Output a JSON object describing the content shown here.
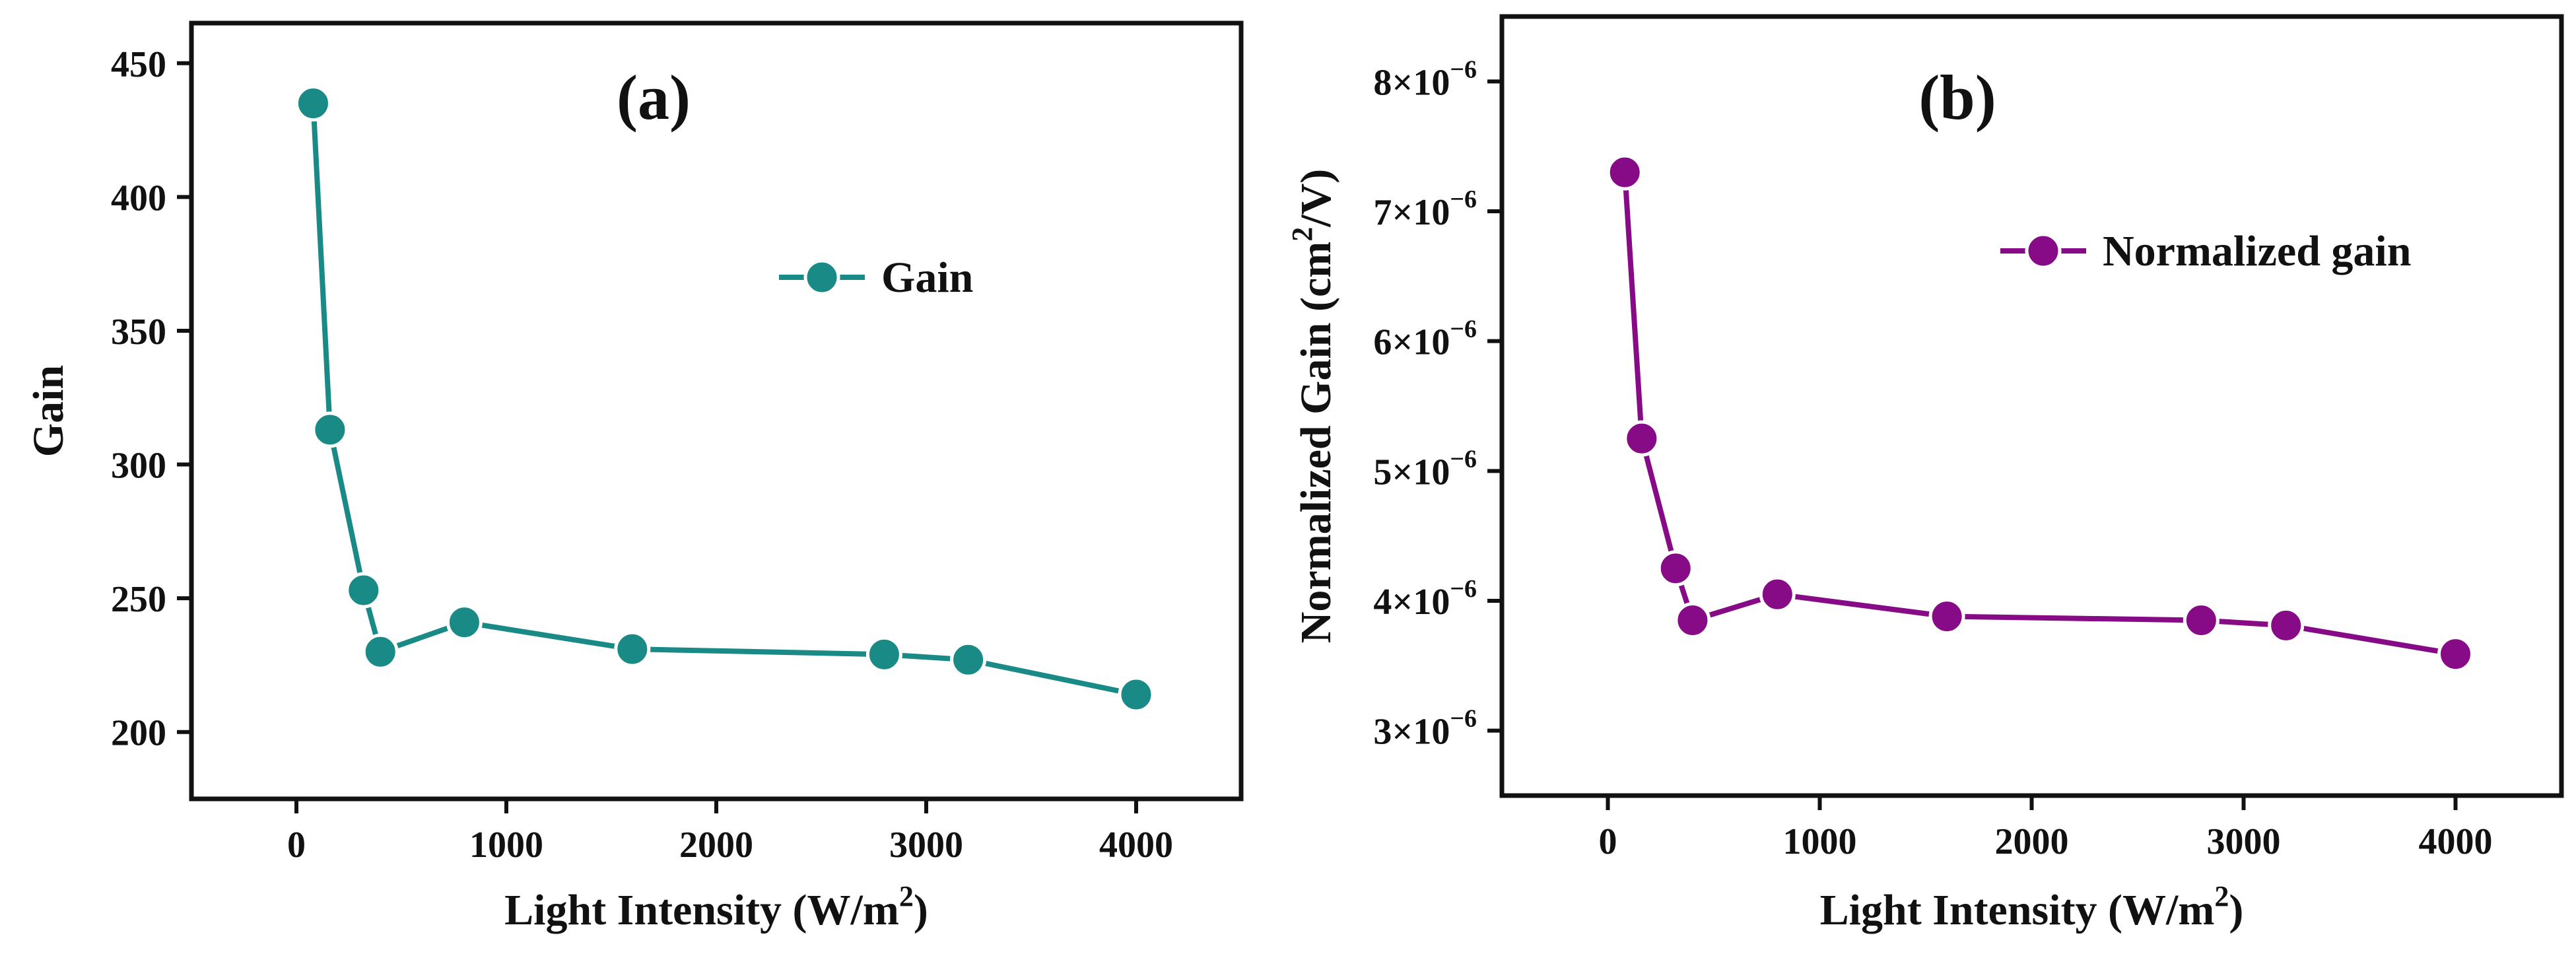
{
  "chart_data": [
    {
      "type": "line",
      "panel_label": "(a)",
      "xlabel": "Light Intensity (W/m",
      "xlabel_sup": "2",
      "xlabel_end": ")",
      "ylabel": "Gain",
      "xlim": [
        -500,
        4500
      ],
      "ylim": [
        175,
        465
      ],
      "xticks": [
        0,
        1000,
        2000,
        3000,
        4000
      ],
      "xtick_labels": [
        "0",
        "1000",
        "2000",
        "3000",
        "4000"
      ],
      "yticks": [
        200,
        250,
        300,
        350,
        400,
        450
      ],
      "ytick_labels": [
        "200",
        "250",
        "300",
        "350",
        "400",
        "450"
      ],
      "legend": "Gain",
      "legend_position": "top-right",
      "color": "#1a8a87",
      "series": [
        {
          "name": "Gain",
          "x": [
            80,
            160,
            320,
            400,
            800,
            1600,
            2800,
            3200,
            4000
          ],
          "y": [
            435,
            313,
            253,
            230,
            241,
            231,
            229,
            227,
            214
          ]
        }
      ]
    },
    {
      "type": "line",
      "panel_label": "(b)",
      "xlabel": "Light Intensity (W/m",
      "xlabel_sup": "2",
      "xlabel_end": ")",
      "ylabel": "Normalized Gain (cm",
      "ylabel_sup": "2",
      "ylabel_end": "/V)",
      "xlim": [
        -500,
        4500
      ],
      "ylim": [
        2.5e-06,
        8.5e-06
      ],
      "xticks": [
        0,
        1000,
        2000,
        3000,
        4000
      ],
      "xtick_labels": [
        "0",
        "1000",
        "2000",
        "3000",
        "4000"
      ],
      "yticks": [
        3e-06,
        4e-06,
        5e-06,
        6e-06,
        7e-06,
        8e-06
      ],
      "ytick_mantissas": [
        "3",
        "4",
        "5",
        "6",
        "7",
        "8"
      ],
      "ytick_base": "×10",
      "ytick_exponent": "−6",
      "legend": "Normalized gain",
      "legend_position": "top-right",
      "color": "#870a87",
      "series": [
        {
          "name": "Normalized gain",
          "x": [
            80,
            160,
            320,
            400,
            800,
            1600,
            2800,
            3200,
            4000
          ],
          "y": [
            7.3e-06,
            5.25e-06,
            4.25e-06,
            3.85e-06,
            4.05e-06,
            3.88e-06,
            3.85e-06,
            3.81e-06,
            3.59e-06
          ]
        }
      ]
    }
  ]
}
